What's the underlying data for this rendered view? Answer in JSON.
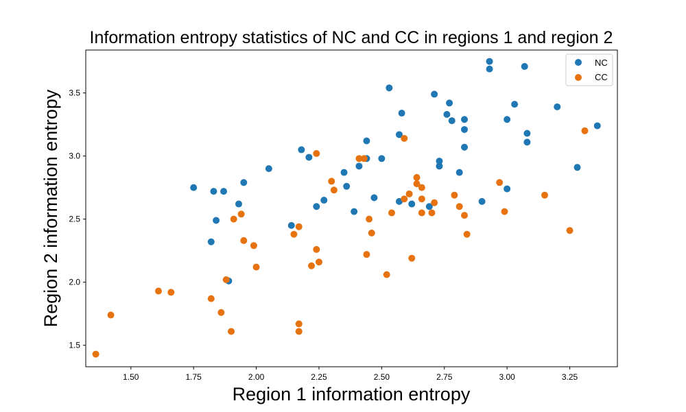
{
  "chart_data": {
    "type": "scatter",
    "title": "Information entropy statistics of NC and CC in regions 1 and region 2",
    "xlabel": "Region 1 information entropy",
    "ylabel": "Region 2 information entropy",
    "xlim": [
      1.32,
      3.44
    ],
    "ylim": [
      1.33,
      3.84
    ],
    "xticks": [
      1.5,
      1.75,
      2.0,
      2.25,
      2.5,
      2.75,
      3.0,
      3.25
    ],
    "xtick_labels": [
      "1.50",
      "1.75",
      "2.00",
      "2.25",
      "2.50",
      "2.75",
      "3.00",
      "3.25"
    ],
    "yticks": [
      1.5,
      2.0,
      2.5,
      3.0,
      3.5
    ],
    "ytick_labels": [
      "1.5",
      "2.0",
      "2.5",
      "3.0",
      "3.5"
    ],
    "grid": false,
    "legend": "top-right",
    "series": [
      {
        "name": "NC",
        "color": "#1f77b4",
        "points": [
          [
            1.75,
            2.75
          ],
          [
            1.83,
            2.72
          ],
          [
            1.87,
            2.72
          ],
          [
            1.95,
            2.79
          ],
          [
            1.84,
            2.49
          ],
          [
            1.82,
            2.32
          ],
          [
            1.93,
            2.62
          ],
          [
            1.89,
            2.01
          ],
          [
            2.05,
            2.9
          ],
          [
            2.14,
            2.45
          ],
          [
            2.18,
            3.05
          ],
          [
            2.21,
            2.99
          ],
          [
            2.24,
            2.6
          ],
          [
            2.27,
            2.65
          ],
          [
            2.35,
            2.87
          ],
          [
            2.36,
            2.76
          ],
          [
            2.39,
            2.56
          ],
          [
            2.41,
            2.92
          ],
          [
            2.44,
            3.12
          ],
          [
            2.44,
            2.98
          ],
          [
            2.47,
            2.67
          ],
          [
            2.5,
            2.98
          ],
          [
            2.53,
            3.54
          ],
          [
            2.57,
            3.17
          ],
          [
            2.57,
            2.64
          ],
          [
            2.58,
            3.34
          ],
          [
            2.62,
            2.62
          ],
          [
            2.69,
            2.6
          ],
          [
            2.71,
            3.49
          ],
          [
            2.73,
            2.96
          ],
          [
            2.73,
            2.92
          ],
          [
            2.76,
            3.33
          ],
          [
            2.77,
            3.42
          ],
          [
            2.78,
            3.28
          ],
          [
            2.81,
            2.87
          ],
          [
            2.83,
            3.29
          ],
          [
            2.83,
            3.21
          ],
          [
            2.83,
            3.07
          ],
          [
            2.9,
            2.64
          ],
          [
            2.93,
            3.75
          ],
          [
            2.93,
            3.69
          ],
          [
            3.0,
            3.29
          ],
          [
            3.0,
            2.74
          ],
          [
            3.03,
            3.41
          ],
          [
            3.07,
            3.71
          ],
          [
            3.08,
            3.18
          ],
          [
            3.08,
            3.11
          ],
          [
            3.2,
            3.39
          ],
          [
            3.28,
            2.91
          ],
          [
            3.36,
            3.24
          ]
        ]
      },
      {
        "name": "CC",
        "color": "#e67310",
        "points": [
          [
            1.36,
            1.43
          ],
          [
            1.42,
            1.74
          ],
          [
            1.61,
            1.93
          ],
          [
            1.66,
            1.92
          ],
          [
            1.82,
            1.87
          ],
          [
            1.86,
            1.76
          ],
          [
            1.88,
            2.02
          ],
          [
            1.9,
            1.61
          ],
          [
            1.91,
            2.5
          ],
          [
            1.94,
            2.54
          ],
          [
            1.95,
            2.33
          ],
          [
            1.99,
            2.29
          ],
          [
            2.0,
            2.12
          ],
          [
            2.15,
            2.38
          ],
          [
            2.17,
            1.61
          ],
          [
            2.17,
            1.67
          ],
          [
            2.17,
            2.44
          ],
          [
            2.22,
            2.13
          ],
          [
            2.24,
            3.02
          ],
          [
            2.24,
            2.26
          ],
          [
            2.25,
            2.16
          ],
          [
            2.3,
            2.8
          ],
          [
            2.31,
            2.73
          ],
          [
            2.41,
            2.98
          ],
          [
            2.43,
            2.98
          ],
          [
            2.44,
            2.22
          ],
          [
            2.45,
            2.5
          ],
          [
            2.46,
            2.39
          ],
          [
            2.52,
            2.06
          ],
          [
            2.54,
            2.55
          ],
          [
            2.59,
            3.14
          ],
          [
            2.59,
            2.66
          ],
          [
            2.61,
            2.7
          ],
          [
            2.62,
            2.19
          ],
          [
            2.64,
            2.83
          ],
          [
            2.64,
            2.78
          ],
          [
            2.66,
            2.75
          ],
          [
            2.66,
            2.66
          ],
          [
            2.66,
            2.55
          ],
          [
            2.7,
            2.55
          ],
          [
            2.71,
            2.63
          ],
          [
            2.79,
            2.69
          ],
          [
            2.81,
            2.6
          ],
          [
            2.83,
            2.53
          ],
          [
            2.84,
            2.38
          ],
          [
            2.97,
            2.79
          ],
          [
            2.99,
            2.56
          ],
          [
            3.15,
            2.69
          ],
          [
            3.25,
            2.41
          ],
          [
            3.31,
            3.2
          ]
        ]
      }
    ]
  }
}
